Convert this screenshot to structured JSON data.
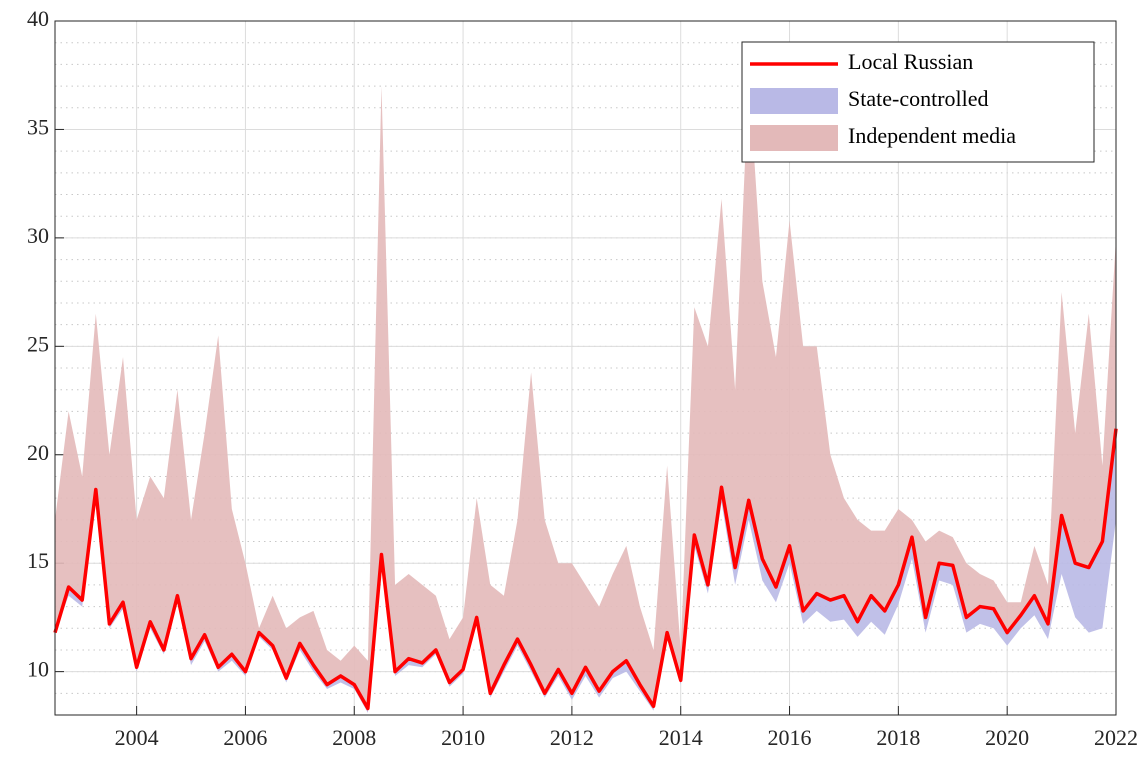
{
  "chart_data": {
    "type": "line",
    "x": [
      2002.5,
      2002.75,
      2003,
      2003.25,
      2003.5,
      2003.75,
      2004,
      2004.25,
      2004.5,
      2004.75,
      2005,
      2005.25,
      2005.5,
      2005.75,
      2006,
      2006.25,
      2006.5,
      2006.75,
      2007,
      2007.25,
      2007.5,
      2007.75,
      2008,
      2008.25,
      2008.5,
      2008.75,
      2009,
      2009.25,
      2009.5,
      2009.75,
      2010,
      2010.25,
      2010.5,
      2010.75,
      2011,
      2011.25,
      2011.5,
      2011.75,
      2012,
      2012.25,
      2012.5,
      2012.75,
      2013,
      2013.25,
      2013.5,
      2013.75,
      2014,
      2014.25,
      2014.5,
      2014.75,
      2015,
      2015.25,
      2015.5,
      2015.75,
      2016,
      2016.25,
      2016.5,
      2016.75,
      2017,
      2017.25,
      2017.5,
      2017.75,
      2018,
      2018.25,
      2018.5,
      2018.75,
      2019,
      2019.25,
      2019.5,
      2019.75,
      2020,
      2020.25,
      2020.5,
      2020.75,
      2021,
      2021.25,
      2021.5,
      2021.75,
      2022
    ],
    "series": [
      {
        "name": "Local Russian",
        "color": "#ff0000",
        "kind": "line",
        "values": [
          11.8,
          13.9,
          13.3,
          18.4,
          12.2,
          13.2,
          10.2,
          12.3,
          11.0,
          13.5,
          10.6,
          11.7,
          10.2,
          10.8,
          10.0,
          11.8,
          11.2,
          9.7,
          11.3,
          10.3,
          9.4,
          9.8,
          9.4,
          8.3,
          15.4,
          10.0,
          10.6,
          10.4,
          11.0,
          9.5,
          10.1,
          12.5,
          9.0,
          10.3,
          11.5,
          10.3,
          9.0,
          10.1,
          9.0,
          10.2,
          9.1,
          10.0,
          10.5,
          9.4,
          8.4,
          11.8,
          9.6,
          16.3,
          14.0,
          18.5,
          14.8,
          17.9,
          15.2,
          13.9,
          15.8,
          12.8,
          13.6,
          13.3,
          13.5,
          12.3,
          13.5,
          12.8,
          14.0,
          16.2,
          12.5,
          15.0,
          14.9,
          12.5,
          13.0,
          12.9,
          11.8,
          12.6,
          13.5,
          12.2,
          17.2,
          15.0,
          14.8,
          16.0,
          21.2
        ]
      },
      {
        "name": "State-controlled",
        "color": "#b9b9e6",
        "kind": "area",
        "values": [
          11.8,
          13.5,
          13.0,
          18,
          12,
          12.9,
          10,
          12,
          10.8,
          13.2,
          10.3,
          11.4,
          10,
          10.5,
          9.8,
          11.6,
          11,
          9.5,
          11.0,
          10,
          9.2,
          9.5,
          9.2,
          8.1,
          15.2,
          9.8,
          10.3,
          10.2,
          10.8,
          9.3,
          9.9,
          12.2,
          8.8,
          10,
          11.2,
          10,
          8.8,
          9.8,
          8.7,
          9.8,
          8.8,
          9.7,
          10,
          9.1,
          8.2,
          11.5,
          9.4,
          15.8,
          13.6,
          17.8,
          14,
          17,
          14.2,
          13.2,
          15,
          12.2,
          12.8,
          12.3,
          12.4,
          11.6,
          12.3,
          11.7,
          13.1,
          15.2,
          11.8,
          14.2,
          14,
          11.8,
          12.2,
          12,
          11.2,
          12,
          12.6,
          11.5,
          14.5,
          12.5,
          11.8,
          12,
          17
        ]
      },
      {
        "name": "Independent media",
        "color": "#e3b9b9",
        "kind": "area",
        "values": [
          17,
          22,
          19,
          26.5,
          20,
          24.5,
          17,
          19,
          18,
          23,
          17,
          21,
          25.5,
          17.5,
          15,
          12,
          13.5,
          12,
          12.5,
          12.8,
          11,
          10.5,
          11.2,
          10.5,
          37,
          14,
          14.5,
          14,
          13.5,
          11.5,
          12.5,
          18,
          14,
          13.5,
          17,
          23.8,
          17,
          15,
          15,
          14,
          13,
          14.5,
          15.8,
          13,
          11,
          19.5,
          11,
          26.8,
          25,
          31.8,
          23,
          37.5,
          28,
          24.5,
          30.8,
          25,
          25,
          20,
          18,
          17,
          16.5,
          16.5,
          17.5,
          17,
          16,
          16.5,
          16.2,
          15,
          14.5,
          14.2,
          13.2,
          13.2,
          15.8,
          14,
          27.5,
          21,
          26.5,
          19.5,
          30
        ]
      }
    ],
    "xlim": [
      2002.5,
      2022
    ],
    "xticks": [
      2004,
      2006,
      2008,
      2010,
      2012,
      2014,
      2016,
      2018,
      2020,
      2022
    ],
    "ylim": [
      8,
      40
    ],
    "yticks": [
      10,
      15,
      20,
      25,
      30,
      35,
      40
    ],
    "grid": true,
    "minor_grid": true,
    "legend": "top right"
  }
}
